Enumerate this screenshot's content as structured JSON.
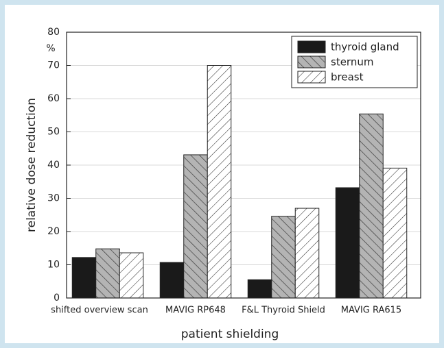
{
  "chart_data": {
    "type": "bar",
    "x_label": "patient shielding",
    "y_label": "relative dose reduction",
    "y_unit": "%",
    "categories": [
      "shifted overview scan",
      "MAVIG RP648",
      "F&L Thyroid Shield",
      "MAVIG RA615"
    ],
    "series": [
      {
        "name": "thyroid gland",
        "color": "#1a1a1a",
        "hatch": "none",
        "values": [
          12.2,
          10.7,
          5.5,
          33.2
        ]
      },
      {
        "name": "sternum",
        "color": "#b4b4b4",
        "hatch": "backslash",
        "values": [
          14.8,
          43.1,
          24.6,
          55.4
        ]
      },
      {
        "name": "breast",
        "color": "#ffffff",
        "hatch": "slash",
        "values": [
          13.6,
          70,
          27,
          39.1
        ]
      }
    ],
    "ylim": [
      0,
      80
    ],
    "yticks": [
      0,
      10,
      20,
      30,
      40,
      50,
      60,
      70,
      80
    ],
    "grid": true,
    "legend": "upper right"
  }
}
